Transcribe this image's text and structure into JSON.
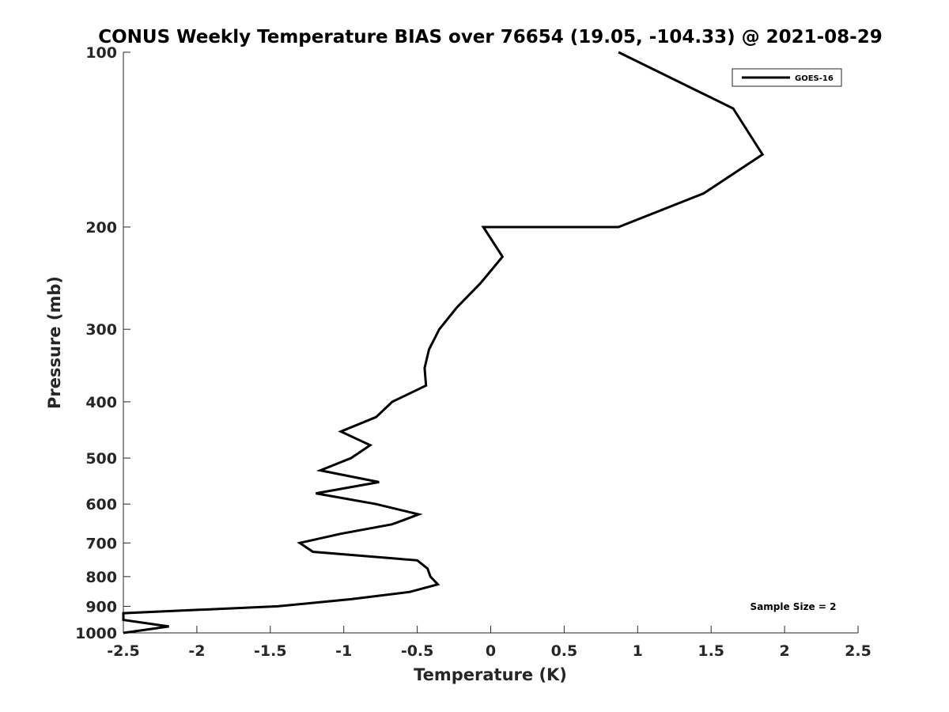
{
  "chart_data": {
    "type": "line",
    "title": "CONUS Weekly Temperature BIAS over 76654 (19.05, -104.33) @ 2021-08-29",
    "xlabel": "Temperature (K)",
    "ylabel": "Pressure (mb)",
    "xlim": [
      -2.5,
      2.5
    ],
    "ylim": [
      100,
      1000
    ],
    "y_scale": "log",
    "y_reversed": true,
    "x_ticks": [
      -2.5,
      -2,
      -1.5,
      -1,
      -0.5,
      0,
      0.5,
      1,
      1.5,
      2,
      2.5
    ],
    "x_tick_labels": [
      "-2.5",
      "-2",
      "-1.5",
      "-1",
      "-0.5",
      "0",
      "0.5",
      "1",
      "1.5",
      "2",
      "2.5"
    ],
    "y_ticks": [
      100,
      200,
      300,
      400,
      500,
      600,
      700,
      800,
      900,
      1000
    ],
    "y_tick_labels": [
      "100",
      "200",
      "300",
      "400",
      "500",
      "600",
      "700",
      "800",
      "900",
      "1000"
    ],
    "grid": false,
    "legend_position": "top-right",
    "line_color": "#000000",
    "series": [
      {
        "name": "GOES-16",
        "points": [
          {
            "x": 0.87,
            "p": 100
          },
          {
            "x": 1.65,
            "p": 125
          },
          {
            "x": 1.85,
            "p": 150
          },
          {
            "x": 1.45,
            "p": 175
          },
          {
            "x": 0.87,
            "p": 200
          },
          {
            "x": 0.87,
            "p": 200
          },
          {
            "x": -0.05,
            "p": 200
          },
          {
            "x": 0.08,
            "p": 225
          },
          {
            "x": -0.07,
            "p": 250
          },
          {
            "x": -0.23,
            "p": 275
          },
          {
            "x": -0.35,
            "p": 300
          },
          {
            "x": -0.42,
            "p": 325
          },
          {
            "x": -0.45,
            "p": 350
          },
          {
            "x": -0.44,
            "p": 375
          },
          {
            "x": -0.67,
            "p": 400
          },
          {
            "x": -0.78,
            "p": 425
          },
          {
            "x": -1.02,
            "p": 450
          },
          {
            "x": -0.82,
            "p": 475
          },
          {
            "x": -0.95,
            "p": 500
          },
          {
            "x": -1.16,
            "p": 525
          },
          {
            "x": -0.76,
            "p": 550
          },
          {
            "x": -1.19,
            "p": 575
          },
          {
            "x": -0.78,
            "p": 600
          },
          {
            "x": -0.49,
            "p": 625
          },
          {
            "x": -0.67,
            "p": 650
          },
          {
            "x": -1.02,
            "p": 675
          },
          {
            "x": -1.3,
            "p": 700
          },
          {
            "x": -1.21,
            "p": 725
          },
          {
            "x": -0.5,
            "p": 750
          },
          {
            "x": -0.43,
            "p": 775
          },
          {
            "x": -0.41,
            "p": 800
          },
          {
            "x": -0.36,
            "p": 825
          },
          {
            "x": -0.55,
            "p": 850
          },
          {
            "x": -0.95,
            "p": 875
          },
          {
            "x": -1.45,
            "p": 900
          },
          {
            "x": -2.5,
            "p": 925
          },
          {
            "x": -2.5,
            "p": 950
          },
          {
            "x": -2.19,
            "p": 975
          },
          {
            "x": -2.5,
            "p": 1000
          }
        ]
      }
    ],
    "legend": [
      {
        "label": "GOES-16"
      }
    ],
    "annotation": "Sample Size = 2"
  }
}
